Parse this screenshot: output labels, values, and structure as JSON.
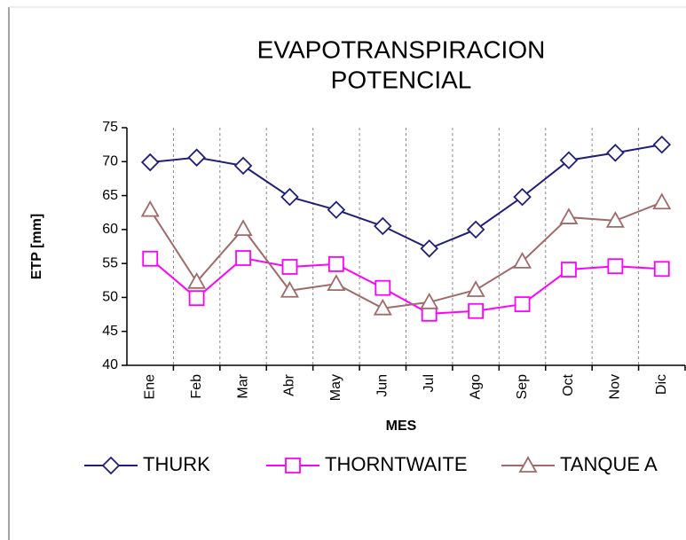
{
  "chart_data": {
    "type": "line",
    "title": [
      "EVAPOTRANSPIRACION",
      "POTENCIAL"
    ],
    "x_label": "MES",
    "y_label": "ETP [mm]",
    "categories": [
      "Ene",
      "Feb",
      "Mar",
      "Abr",
      "May",
      "Jun",
      "Jul",
      "Ago",
      "Sep",
      "Oct",
      "Nov",
      "Dic"
    ],
    "series": [
      {
        "name": "THURK",
        "color": "#1f1f7a",
        "marker": "diamond",
        "values": [
          69.9,
          70.6,
          69.4,
          64.8,
          62.9,
          60.5,
          57.2,
          60.0,
          64.8,
          70.2,
          71.3,
          72.5
        ]
      },
      {
        "name": "THORNTWAITE",
        "color": "#ff00ff",
        "marker": "square",
        "values": [
          55.7,
          49.9,
          55.8,
          54.5,
          54.9,
          51.4,
          47.6,
          48.0,
          49.0,
          54.1,
          54.6,
          54.2
        ]
      },
      {
        "name": "TANQUE A",
        "color": "#a06a6a",
        "marker": "triangle",
        "values": [
          62.9,
          52.3,
          60.1,
          51.0,
          52.0,
          48.4,
          49.3,
          51.1,
          55.3,
          61.8,
          61.3,
          64.0
        ]
      }
    ],
    "ylim": [
      40,
      75
    ],
    "yticks": [
      40,
      45,
      50,
      55,
      60,
      65,
      70,
      75
    ],
    "grid": "x",
    "legend": "bottom"
  }
}
